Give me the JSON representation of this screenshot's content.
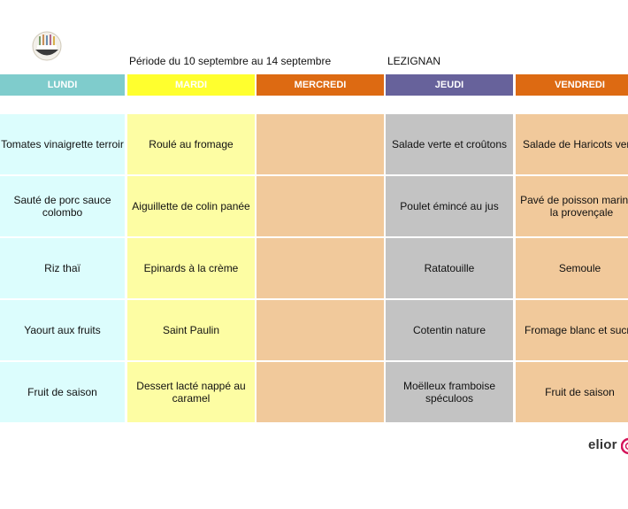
{
  "header": {
    "period": "Période du 10 septembre au 14 septembre",
    "location": "LEZIGNAN"
  },
  "days": [
    {
      "label": "LUNDI",
      "color": "#7fcccc"
    },
    {
      "label": "MARDI",
      "color": "#ffff2e"
    },
    {
      "label": "MERCREDI",
      "color": "#dd6a12"
    },
    {
      "label": "JEUDI",
      "color": "#67629b"
    },
    {
      "label": "VENDREDI",
      "color": "#dd6a12"
    }
  ],
  "menu": {
    "lundi": [
      "Tomates vinaigrette terroir",
      "Sauté de porc sauce colombo",
      "Riz thaï",
      "Yaourt aux fruits",
      "Fruit de saison"
    ],
    "mardi": [
      "Roulé au fromage",
      "Aiguillette de colin panée",
      "Epinards à la crème",
      "Saint Paulin",
      "Dessert lacté nappé au caramel"
    ],
    "mercredi": [
      "",
      "",
      "",
      "",
      ""
    ],
    "jeudi": [
      "Salade verte et croûtons",
      "Poulet émincé au jus",
      "Ratatouille",
      "Cotentin nature",
      "Moëlleux framboise spéculoos"
    ],
    "vendredi": [
      "Salade de Haricots verts",
      "Pavé de poisson mariné à la provençale",
      "Semoule",
      "Fromage blanc et sucre",
      "Fruit de saison"
    ]
  },
  "brand": {
    "name": "elior",
    "logo_icon": "restaurant-logo-icon"
  }
}
